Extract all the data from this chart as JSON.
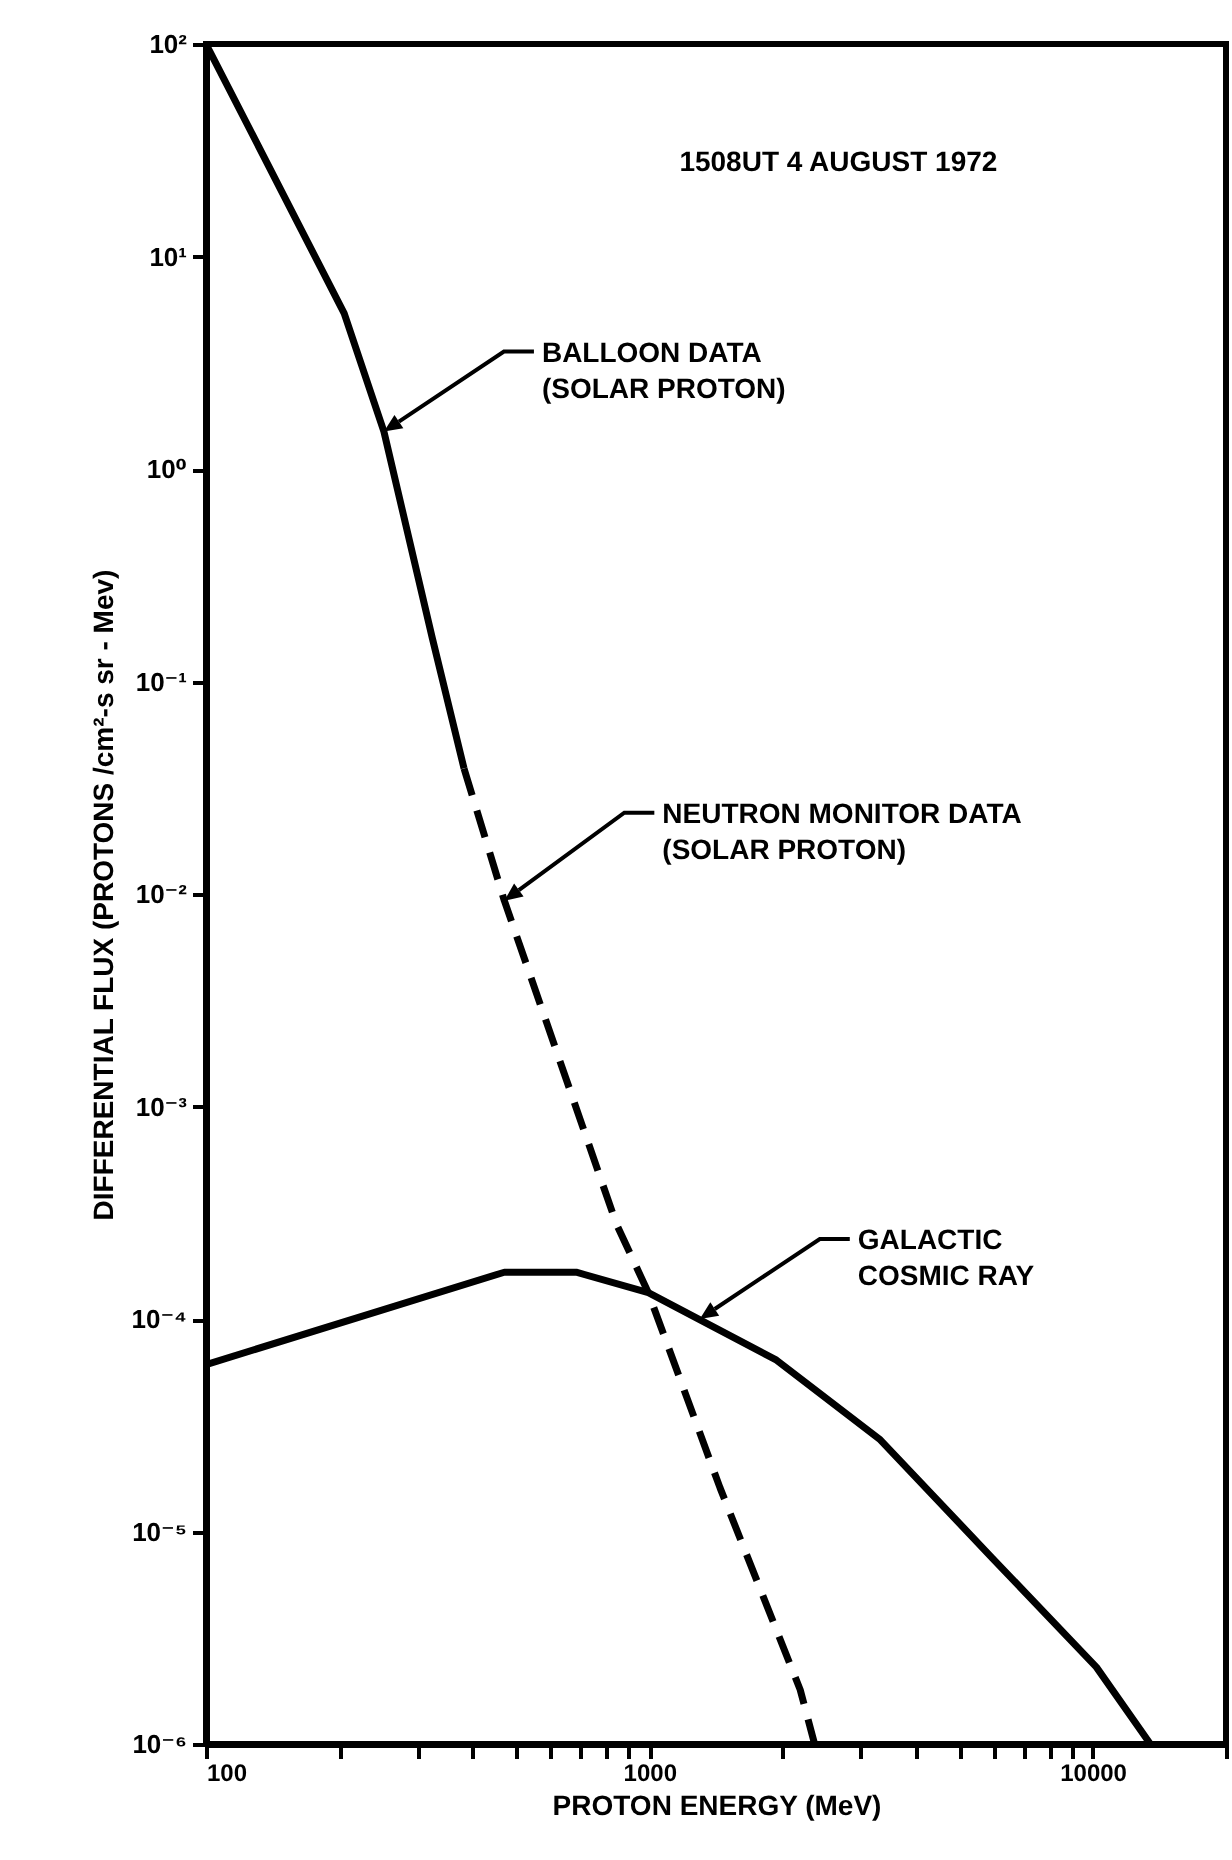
{
  "chart_data": {
    "type": "line",
    "xlabel": "PROTON ENERGY (MeV)",
    "ylabel": "DIFFERENTIAL FLUX (PROTONS /cm²-s sr - Mev)",
    "log": "xy",
    "xlim": [
      100,
      20000
    ],
    "ylim": [
      1e-06,
      100
    ],
    "xticks": [
      100,
      {
        "value": 200,
        "label": null
      },
      {
        "value": 300,
        "label": null
      },
      {
        "value": 400,
        "label": null
      },
      {
        "value": 500,
        "label": null
      },
      {
        "value": 600,
        "label": null
      },
      {
        "value": 700,
        "label": null
      },
      {
        "value": 800,
        "label": null
      },
      {
        "value": 900,
        "label": null
      },
      1000,
      {
        "value": 2000,
        "label": null
      },
      {
        "value": 3000,
        "label": null
      },
      {
        "value": 4000,
        "label": null
      },
      {
        "value": 5000,
        "label": null
      },
      {
        "value": 6000,
        "label": null
      },
      {
        "value": 7000,
        "label": null
      },
      {
        "value": 8000,
        "label": null
      },
      {
        "value": 9000,
        "label": null
      },
      10000,
      {
        "value": 20000,
        "label": null
      }
    ],
    "yticks": [
      {
        "value": 100,
        "label": "10²"
      },
      {
        "value": 10,
        "label": "10¹"
      },
      {
        "value": 1,
        "label": "10⁰"
      },
      {
        "value": 0.1,
        "label": "10⁻¹"
      },
      {
        "value": 0.01,
        "label": "10⁻²"
      },
      {
        "value": 0.001,
        "label": "10⁻³"
      },
      {
        "value": 0.0001,
        "label": "10⁻⁴"
      },
      {
        "value": 1e-05,
        "label": "10⁻⁵"
      },
      {
        "value": 1e-06,
        "label": "10⁻⁶"
      }
    ],
    "grid": false,
    "marker": "none",
    "series": [
      {
        "color": "#000000",
        "line_style": "solid",
        "x": [
          100,
          160,
          205,
          252,
          324,
          382
        ],
        "values": [
          100,
          14.8,
          5.4,
          1.5,
          0.16,
          0.039
        ]
      },
      {
        "color": "#000000",
        "line_style": "dashed",
        "x": [
          382,
          471,
          843,
          995,
          1445,
          2190,
          2360
        ],
        "values": [
          0.039,
          0.0093,
          0.00028,
          0.000133,
          1.6e-05,
          1.8e-06,
          1e-06
        ]
      },
      {
        "color": "#000000",
        "line_style": "solid",
        "x": [
          100,
          471,
          684,
          995,
          1937,
          3320,
          5940,
          10200,
          13500
        ],
        "values": [
          6.1e-05,
          0.000166,
          0.000166,
          0.000133,
          6.4e-05,
          2.7e-05,
          7.5e-06,
          2.3e-06,
          1e-06
        ]
      }
    ],
    "annotations": [
      "1508UT 4 AUGUST 1972",
      {
        "text": "BALLOON DATA\n(SOLAR PROTON)",
        "x": 252,
        "y": 1.5
      },
      {
        "text": "NEUTRON MONITOR DATA\n(SOLAR PROTON)",
        "x": 471,
        "y": 0.0093
      },
      {
        "text": "GALACTIC\nCOSMIC RAY",
        "x": 1300,
        "y": 0.0001
      }
    ]
  }
}
